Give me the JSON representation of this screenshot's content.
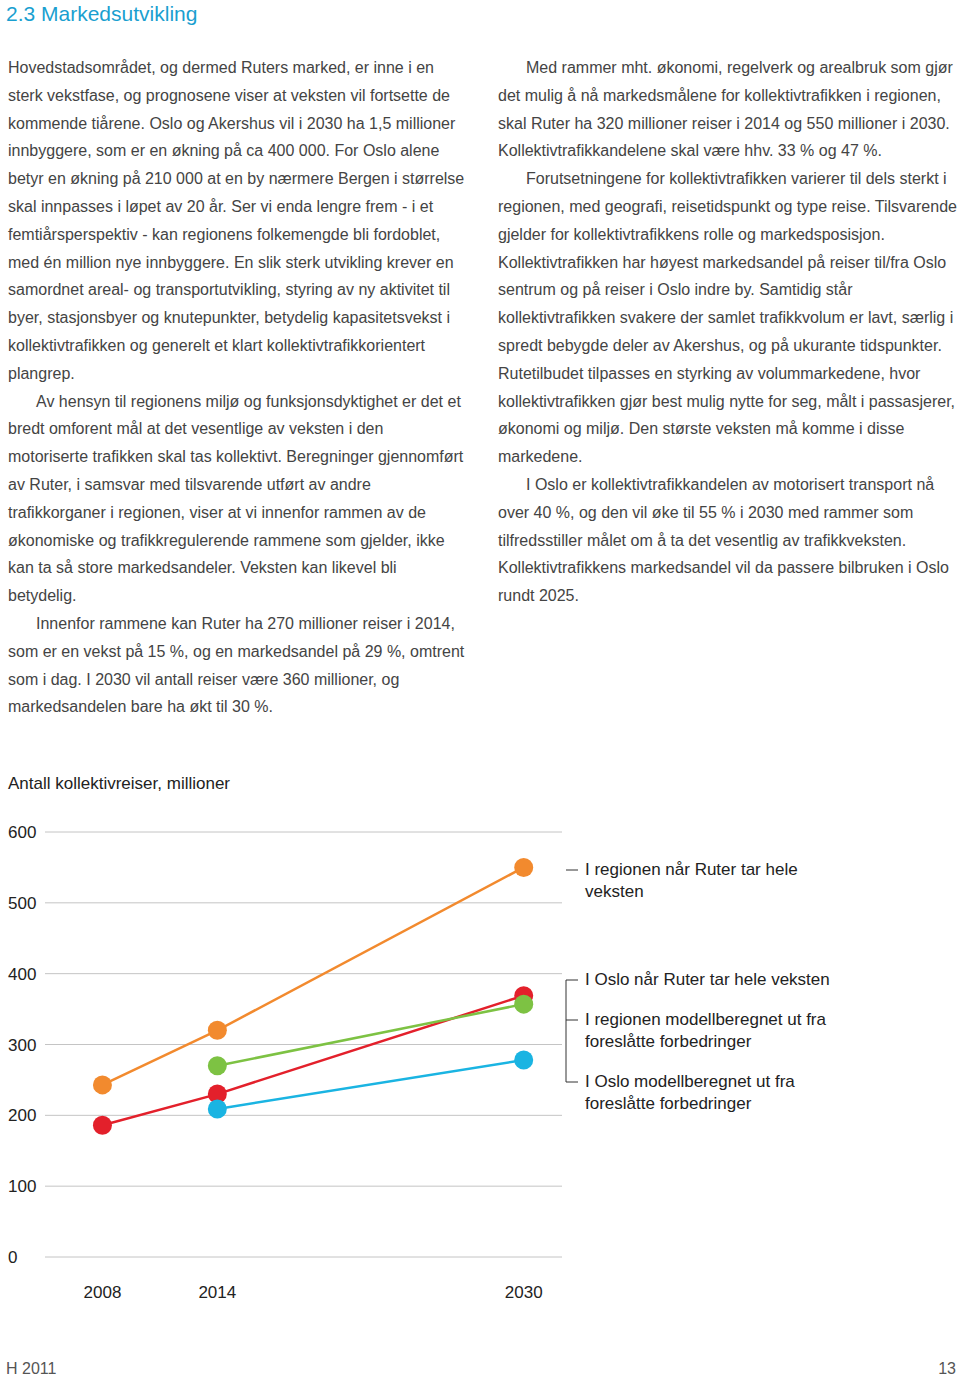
{
  "header": {
    "title": "2.3 Markedsutvikling"
  },
  "columns": [
    {
      "paragraphs": [
        "Hovedstadsområdet, og dermed Ruters marked, er inne i en sterk vekstfase, og prognosene viser at veksten vil fortsette de kommende tiårene. Oslo og Akershus vil i 2030 ha 1,5 millioner innbyggere, som er en økning på ca 400 000. For Oslo alene betyr en økning på 210 000 at en by nærmere Bergen i størrelse skal innpasses i løpet av 20 år. Ser vi enda lengre frem - i et femtiårsperspektiv - kan regionens folkemengde bli fordoblet, med én million nye innbyggere. En slik sterk utvikling krever en samordnet areal- og transportutvikling, styring av ny aktivitet til byer, stasjonsbyer og knutepunkter, betydelig kapasitetsvekst i kollektivtrafikken og generelt et klart kollektivtrafikkorientert plangrep.",
        "Av hensyn til regionens miljø og funksjonsdyktighet er det et bredt omforent mål at det vesentlige av veksten i den motoriserte trafikken skal tas kollektivt. Beregninger gjennomført av Ruter, i samsvar med tilsvarende utført av andre trafikkorganer i regionen, viser at vi innenfor rammen av de økonomiske og trafikkregulerende rammene som gjelder, ikke kan ta så store markedsandeler. Veksten kan likevel bli betydelig.",
        "Innenfor rammene kan Ruter ha 270 millioner reiser i 2014, som er en vekst på 15 %, og en markedsandel på 29 %, omtrent som i dag. I 2030 vil antall reiser være 360 millioner, og markedsandelen bare ha økt til 30 %."
      ]
    },
    {
      "paragraphs": [
        "Med rammer mht. økonomi, regelverk og arealbruk som gjør det mulig å nå markedsmålene for kollektivtrafikken i regionen, skal Ruter ha 320 millioner reiser i 2014 og 550 millioner i 2030. Kollektivtrafikkandelene skal være hhv. 33 % og 47 %.",
        "Forutsetningene for kollektivtrafikken varierer til dels sterkt i regionen, med geografi, reisetidspunkt og type reise. Tilsvarende gjelder for kollektivtrafikkens rolle og markedsposisjon. Kollektivtrafikken har høyest markedsandel på reiser til/fra Oslo sentrum og på reiser i Oslo indre by. Samtidig står kollektivtrafikken svakere der samlet trafikkvolum er lavt, særlig i spredt bebygde deler av Akershus, og på ukurante tidspunkter. Rutetilbudet tilpasses en styrking av volummarkedene, hvor kollektivtrafikken gjør best mulig nytte for seg, målt i passasjerer, økonomi og miljø. Den største veksten må komme i disse markedene.",
        "I Oslo er kollektivtrafikkandelen av motorisert transport nå over 40 %, og den vil øke til 55 % i 2030 med rammer som tilfredsstiller målet om å ta det vesentlig av trafikkveksten. Kollektivtrafikkens markedsandel vil da passere bilbruken i Oslo rundt 2025."
      ]
    }
  ],
  "chart_data": {
    "type": "line",
    "title": "Antall kollektivreiser, millioner",
    "x": [
      2008,
      2014,
      2030
    ],
    "xlim": [
      2005,
      2032
    ],
    "xticks": [
      2008,
      2014,
      2030
    ],
    "ylim": [
      0,
      600
    ],
    "yticks": [
      0,
      100,
      200,
      300,
      400,
      500,
      600
    ],
    "grid": true,
    "legend": "right",
    "marker": "circle",
    "series": [
      {
        "name": "I regionen når Ruter tar hele veksten",
        "color": "#f28a2e",
        "values": [
          243,
          320,
          550
        ]
      },
      {
        "name": "I Oslo når Ruter tar hele veksten",
        "color": "#e3202b",
        "values": [
          186,
          230,
          369
        ]
      },
      {
        "name": "I regionen modellberegnet ut fra foreslåtte forbedringer",
        "color": "#7dc243",
        "values": [
          null,
          270,
          357
        ]
      },
      {
        "name": "I Oslo modellberegnet ut fra foreslåtte forbedringer",
        "color": "#1ab4e2",
        "values": [
          null,
          209,
          278
        ]
      }
    ]
  },
  "footer": {
    "left": "H 2011",
    "page": 13
  }
}
